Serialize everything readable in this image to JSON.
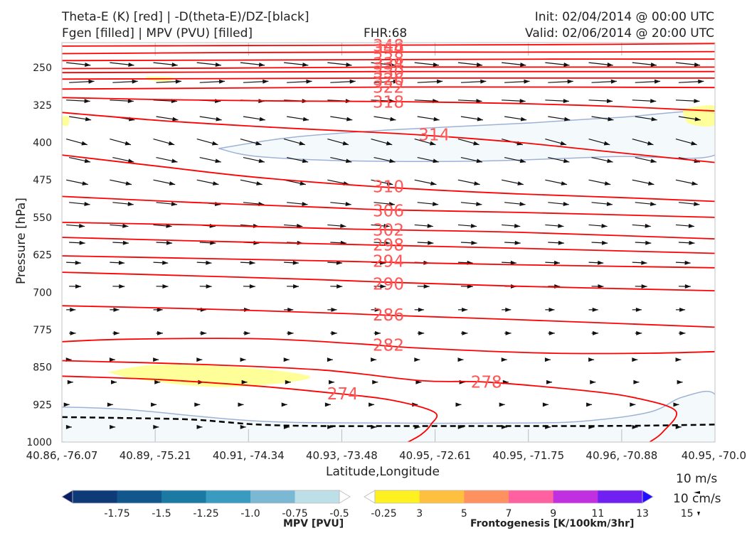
{
  "header": {
    "title_line1": "Theta-E (K) [red] | -D(theta-E)/DZ-[black]",
    "title_line2": "Fgen [filled] | MPV (PVU) [filled]",
    "fhr": "FHR:68",
    "init": "Init: 02/04/2014 @ 00:00 UTC",
    "valid": "Valid: 02/06/2014 @ 20:00 UTC"
  },
  "chart_data": {
    "type": "cross-section",
    "xlabel": "Latitude,Longitude",
    "ylabel": "Pressure [hPa]",
    "x_ticks": [
      "40.86, -76.07",
      "40.89, -75.21",
      "40.91, -74.34",
      "40.93, -73.48",
      "40.95, -72.61",
      "40.95, -71.75",
      "40.96, -70.88",
      "40.95, -70.0"
    ],
    "y_ticks": [
      250,
      325,
      400,
      475,
      550,
      625,
      700,
      775,
      850,
      925,
      1000
    ],
    "y_range": [
      200,
      1000
    ],
    "y_inverted": true,
    "theta_e_color": "#ff0000",
    "theta_e_label_color": "#ff5555",
    "theta_e_contours": [
      {
        "label": "348",
        "x": [
          0,
          0.25,
          0.5,
          0.75,
          1
        ],
        "p": [
          207,
          206,
          205,
          204,
          202
        ]
      },
      {
        "label": "344",
        "x": [
          0,
          0.25,
          0.5,
          0.75,
          1
        ],
        "p": [
          222,
          220,
          219,
          219,
          218
        ]
      },
      {
        "label": "338",
        "x": [
          0,
          0.25,
          0.5,
          0.75,
          1
        ],
        "p": [
          236,
          235,
          234,
          233,
          233
        ]
      },
      {
        "label": "334",
        "x": [
          0,
          0.25,
          0.5,
          0.75,
          1
        ],
        "p": [
          252,
          251,
          249,
          249,
          249
        ]
      },
      {
        "label": "330",
        "x": [
          0,
          0.25,
          0.5,
          0.75,
          1
        ],
        "p": [
          260,
          259,
          258,
          258,
          258
        ]
      },
      {
        "label": "326",
        "x": [
          0,
          0.25,
          0.5,
          0.75,
          1
        ],
        "p": [
          273,
          272,
          271,
          271,
          271
        ]
      },
      {
        "label": "322",
        "x": [
          0,
          0.25,
          0.5,
          0.75,
          1
        ],
        "p": [
          293,
          291,
          289,
          289,
          290
        ]
      },
      {
        "label": "318",
        "x": [
          0,
          0.15,
          0.35,
          0.5,
          0.7,
          0.85,
          1
        ],
        "p": [
          310,
          314,
          317,
          318,
          322,
          328,
          337
        ]
      },
      {
        "label": "314",
        "x": [
          0,
          0.15,
          0.3,
          0.45,
          0.55,
          0.7,
          0.85,
          1
        ],
        "p": [
          340,
          356,
          368,
          378,
          385,
          400,
          420,
          440
        ]
      },
      {
        "label": "310",
        "x": [
          0,
          0.15,
          0.3,
          0.5,
          0.7,
          0.85,
          1
        ],
        "p": [
          425,
          448,
          470,
          490,
          503,
          510,
          518
        ]
      },
      {
        "label": "306",
        "x": [
          0,
          0.2,
          0.4,
          0.5,
          0.7,
          1
        ],
        "p": [
          508,
          520,
          530,
          535,
          540,
          550
        ]
      },
      {
        "label": "302",
        "x": [
          0,
          0.2,
          0.4,
          0.5,
          0.7,
          1
        ],
        "p": [
          560,
          565,
          572,
          575,
          580,
          593
        ]
      },
      {
        "label": "298",
        "x": [
          0,
          0.2,
          0.4,
          0.5,
          0.7,
          1
        ],
        "p": [
          590,
          597,
          603,
          606,
          612,
          622
        ]
      },
      {
        "label": "294",
        "x": [
          0,
          0.2,
          0.4,
          0.5,
          0.7,
          1
        ],
        "p": [
          627,
          632,
          637,
          640,
          645,
          651
        ]
      },
      {
        "label": "290",
        "x": [
          0,
          0.2,
          0.4,
          0.5,
          0.7,
          1
        ],
        "p": [
          660,
          667,
          675,
          680,
          688,
          697
        ]
      },
      {
        "label": "286",
        "x": [
          0,
          0.2,
          0.4,
          0.5,
          0.7,
          1
        ],
        "p": [
          727,
          733,
          741,
          746,
          755,
          770
        ]
      },
      {
        "label": "282",
        "x": [
          0,
          0.1,
          0.3,
          0.45,
          0.55,
          0.75,
          0.9,
          1
        ],
        "p": [
          799,
          794,
          793,
          803,
          812,
          822,
          822,
          819
        ]
      },
      {
        "label": "278",
        "x": [
          0,
          0.2,
          0.4,
          0.55,
          0.65,
          0.8,
          0.88,
          0.94,
          0.92,
          0.9
        ],
        "p": [
          837,
          844,
          856,
          877,
          880,
          897,
          912,
          938,
          980,
          1000
        ]
      },
      {
        "label": "274",
        "x": [
          0,
          0.15,
          0.3,
          0.4,
          0.5,
          0.57,
          0.565,
          0.55,
          0.53
        ],
        "p": [
          868,
          875,
          888,
          900,
          915,
          940,
          965,
          985,
          1000
        ]
      }
    ],
    "theta_e_label_positions": [
      {
        "label": "348",
        "x": 0.5,
        "p": 206
      },
      {
        "label": "344",
        "x": 0.5,
        "p": 211
      },
      {
        "label": "338",
        "x": 0.5,
        "p": 232
      },
      {
        "label": "334",
        "x": 0.5,
        "p": 242
      },
      {
        "label": "330",
        "x": 0.5,
        "p": 259
      },
      {
        "label": "326",
        "x": 0.5,
        "p": 273
      },
      {
        "label": "322",
        "x": 0.5,
        "p": 289
      },
      {
        "label": "318",
        "x": 0.5,
        "p": 319
      },
      {
        "label": "314",
        "x": 0.57,
        "p": 384
      },
      {
        "label": "310",
        "x": 0.5,
        "p": 488
      },
      {
        "label": "306",
        "x": 0.5,
        "p": 537
      },
      {
        "label": "302",
        "x": 0.5,
        "p": 575
      },
      {
        "label": "298",
        "x": 0.5,
        "p": 605
      },
      {
        "label": "294",
        "x": 0.5,
        "p": 638
      },
      {
        "label": "290",
        "x": 0.5,
        "p": 683
      },
      {
        "label": "286",
        "x": 0.5,
        "p": 745
      },
      {
        "label": "282",
        "x": 0.5,
        "p": 806
      },
      {
        "label": "278",
        "x": 0.65,
        "p": 880
      },
      {
        "label": "274",
        "x": 0.43,
        "p": 903
      }
    ],
    "mpv_regions": [
      {
        "color": "#f4fafc",
        "outline": "#9fb2d6",
        "x": [
          0.24,
          0.35,
          0.5,
          0.7,
          0.85,
          1,
          1,
          0.85,
          0.65,
          0.45,
          0.3
        ],
        "p": [
          412,
          390,
          375,
          362,
          350,
          342,
          425,
          428,
          437,
          437,
          428
        ]
      },
      {
        "color": "#f4fafc",
        "outline": "#9fb2d6",
        "x": [
          0,
          0.1,
          0.3,
          0.5,
          0.7,
          0.8,
          0.9,
          0.95,
          1,
          1,
          0
        ],
        "p": [
          930,
          935,
          958,
          962,
          962,
          958,
          940,
          910,
          905,
          1000,
          1000
        ]
      }
    ],
    "fgen_regions": [
      {
        "color": "#ffff88",
        "x": [
          0.07,
          0.15,
          0.3,
          0.38,
          0.25,
          0.12
        ],
        "p": [
          860,
          845,
          853,
          872,
          890,
          875
        ]
      },
      {
        "color": "#ffff88",
        "x": [
          0.13,
          0.17,
          0.16,
          0.13
        ],
        "p": [
          268,
          270,
          278,
          274
        ]
      },
      {
        "color": "#ffff88",
        "x": [
          0.95,
          1,
          1,
          0.96
        ],
        "p": [
          333,
          327,
          365,
          362
        ]
      },
      {
        "color": "#ffff88",
        "x": [
          0,
          0.01,
          0.01,
          0
        ],
        "p": [
          348,
          348,
          365,
          365
        ]
      }
    ],
    "ground_line": {
      "style": "dashed",
      "color": "#000000",
      "x": [
        0,
        0.1,
        0.2,
        0.3,
        0.4,
        0.5,
        0.6,
        0.7,
        0.8,
        0.9,
        1
      ],
      "p": [
        950,
        952,
        955,
        965,
        968,
        968,
        968,
        968,
        968,
        967,
        965
      ]
    },
    "wind_vectors": {
      "columns": 15,
      "rows_p": [
        240,
        280,
        315,
        348,
        393,
        430,
        475,
        520,
        565,
        600,
        640,
        688,
        735,
        782,
        835,
        880,
        925,
        970
      ],
      "dx_by_row": [
        0.9,
        0.98,
        0.98,
        0.96,
        0.92,
        0.93,
        0.95,
        0.97,
        0.98,
        0.99,
        0.99,
        0.99,
        0.99,
        1,
        1,
        1,
        1,
        1
      ],
      "dy_by_row": [
        0.1,
        -0.05,
        0.05,
        0.15,
        0.25,
        0.2,
        0.2,
        0.1,
        0.08,
        0.05,
        0.05,
        0.02,
        0,
        0,
        0,
        0,
        0,
        0
      ],
      "mag_by_row": [
        1,
        0.95,
        0.9,
        0.85,
        0.85,
        0.85,
        0.85,
        0.8,
        0.7,
        0.6,
        0.55,
        0.45,
        0.35,
        0.25,
        0.2,
        0.15,
        0.12,
        0.1
      ]
    }
  },
  "colorbars": {
    "mpv": {
      "title": "MPV [PVU]",
      "labels": [
        "-1.75",
        "-1.5",
        "-1.25",
        "-1.0",
        "-0.75",
        "-0.5",
        "-0.25"
      ],
      "colors": [
        "#0a1f66",
        "#0e3a78",
        "#11568c",
        "#1b7aa4",
        "#3a9bc0",
        "#7ab8d4",
        "#bcdfe8",
        "#ffffff"
      ]
    },
    "fgen": {
      "title": "Frontogenesis [K/100km/3hr]",
      "labels": [
        "3",
        "5",
        "7",
        "9",
        "11",
        "13",
        "15"
      ],
      "colors": [
        "#ffffff",
        "#fff020",
        "#ffc040",
        "#ff9060",
        "#ff60a0",
        "#c030e0",
        "#7020f0",
        "#2010ff"
      ]
    }
  },
  "wind_legend": {
    "speed": "10 m/s",
    "vertical": "10 cm/s"
  }
}
